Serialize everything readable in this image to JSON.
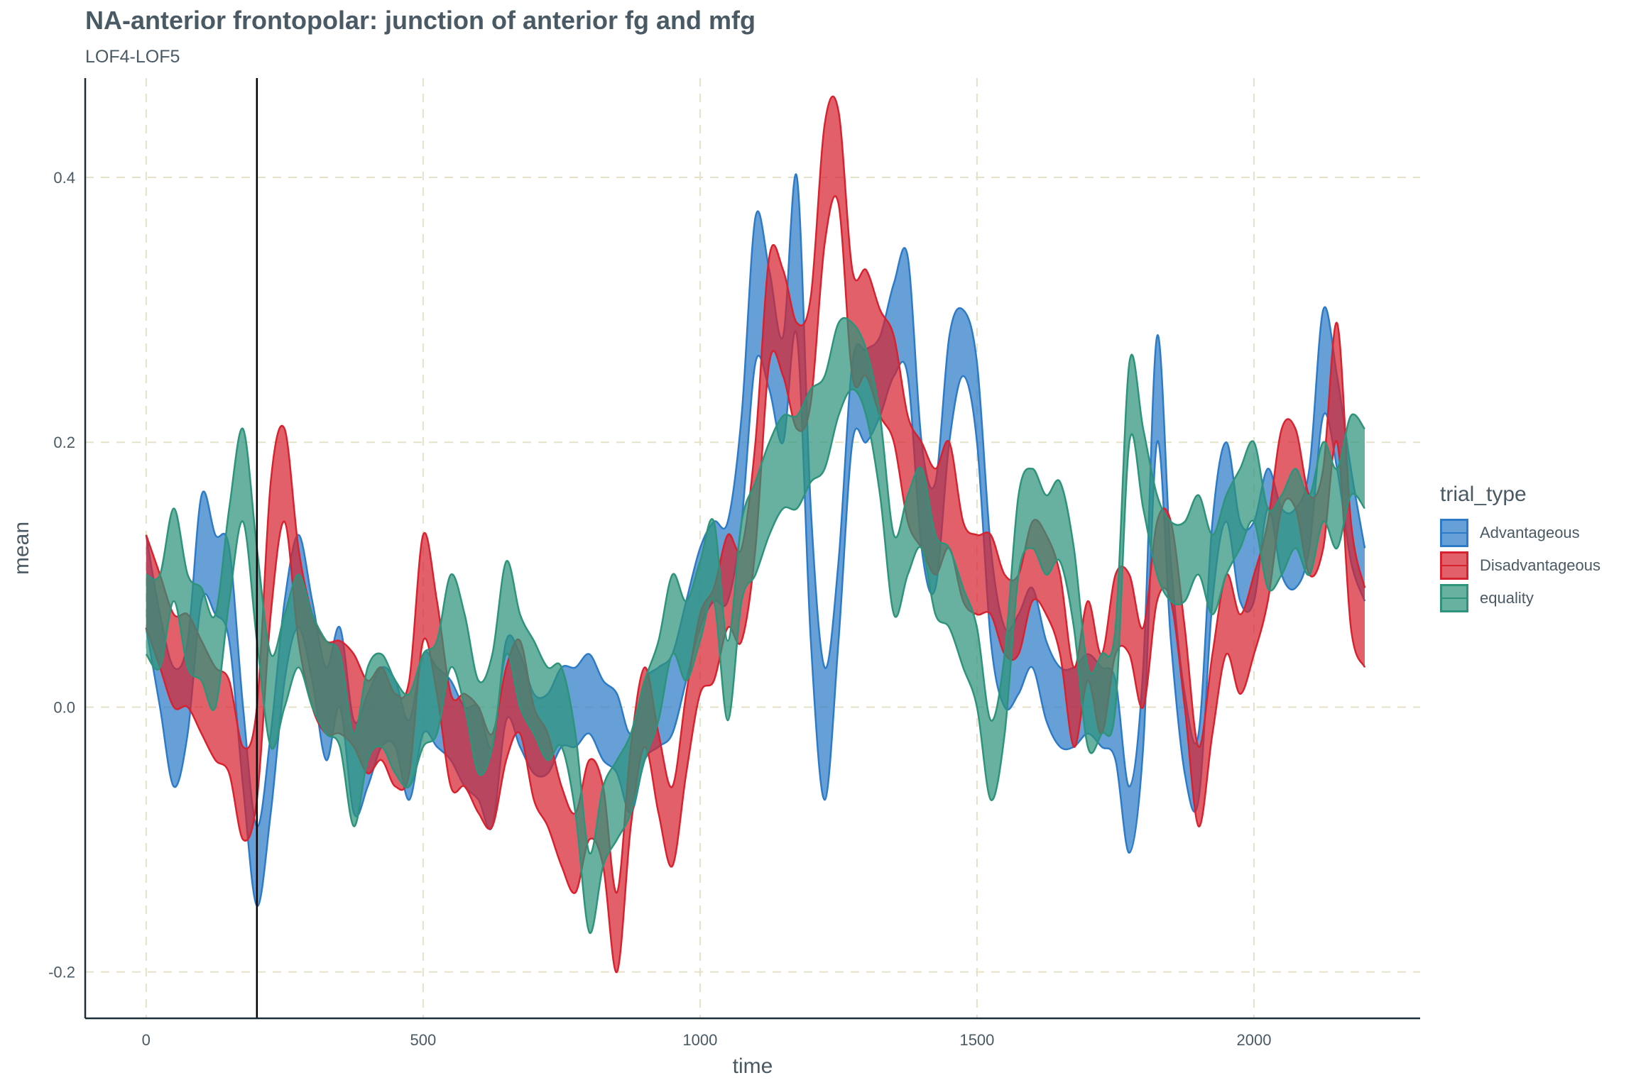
{
  "chart_data": {
    "type": "area",
    "title": "NA-anterior frontopolar: junction of anterior fg and mfg",
    "subtitle": "LOF4-LOF5",
    "xlabel": "time",
    "ylabel": "mean",
    "xlim": [
      -110,
      2300
    ],
    "ylim": [
      -0.235,
      0.475
    ],
    "xticks": [
      0,
      500,
      1000,
      1500,
      2000
    ],
    "xtick_labels": [
      "0",
      "500",
      "1000",
      "1500",
      "2000"
    ],
    "yticks": [
      -0.2,
      0.0,
      0.2,
      0.4
    ],
    "ytick_labels": [
      "-0.2",
      "0.0",
      "0.2",
      "0.4"
    ],
    "grid": true,
    "vertical_reference_line_x": 200,
    "legend_title": "trial_type",
    "legend_position": "right",
    "series": [
      {
        "name": "Advantageous",
        "color": "#2d7bc7",
        "x": [
          0,
          25,
          50,
          75,
          100,
          125,
          150,
          175,
          200,
          225,
          250,
          275,
          300,
          325,
          350,
          375,
          400,
          425,
          450,
          475,
          500,
          525,
          550,
          575,
          600,
          625,
          650,
          675,
          700,
          725,
          750,
          775,
          800,
          825,
          850,
          875,
          900,
          925,
          950,
          975,
          1000,
          1025,
          1050,
          1075,
          1100,
          1125,
          1150,
          1175,
          1200,
          1225,
          1250,
          1275,
          1300,
          1325,
          1350,
          1375,
          1400,
          1425,
          1450,
          1475,
          1500,
          1525,
          1550,
          1575,
          1600,
          1625,
          1650,
          1675,
          1700,
          1725,
          1750,
          1775,
          1800,
          1825,
          1850,
          1875,
          1900,
          1925,
          1950,
          1975,
          2000,
          2025,
          2050,
          2075,
          2100,
          2125,
          2150,
          2175,
          2200
        ],
        "lower": [
          0.06,
          0.0,
          -0.06,
          -0.02,
          0.08,
          0.07,
          0.05,
          -0.06,
          -0.15,
          -0.08,
          0.02,
          0.06,
          0.02,
          -0.04,
          0.0,
          -0.08,
          -0.06,
          -0.03,
          -0.03,
          -0.07,
          -0.02,
          -0.03,
          -0.04,
          -0.06,
          -0.07,
          -0.09,
          -0.01,
          -0.03,
          -0.05,
          -0.05,
          -0.03,
          -0.03,
          -0.02,
          -0.04,
          -0.05,
          -0.08,
          -0.04,
          -0.03,
          -0.02,
          0.02,
          0.06,
          0.08,
          0.08,
          0.14,
          0.26,
          0.24,
          0.2,
          0.28,
          0.05,
          -0.07,
          0.05,
          0.2,
          0.2,
          0.22,
          0.25,
          0.25,
          0.12,
          0.09,
          0.2,
          0.25,
          0.2,
          0.05,
          0.0,
          0.01,
          0.03,
          -0.01,
          -0.03,
          -0.03,
          -0.02,
          -0.03,
          -0.04,
          -0.11,
          -0.03,
          0.2,
          0.05,
          -0.05,
          -0.07,
          0.08,
          0.14,
          0.08,
          0.08,
          0.15,
          0.1,
          0.09,
          0.12,
          0.22,
          0.18,
          0.11,
          0.08
        ],
        "upper": [
          0.13,
          0.07,
          0.03,
          0.05,
          0.16,
          0.13,
          0.12,
          0.0,
          -0.09,
          -0.02,
          0.08,
          0.13,
          0.08,
          0.03,
          0.06,
          -0.01,
          0.01,
          0.03,
          0.02,
          -0.01,
          0.04,
          0.03,
          0.02,
          0.0,
          0.0,
          -0.03,
          0.05,
          0.04,
          0.01,
          0.01,
          0.03,
          0.03,
          0.04,
          0.02,
          0.01,
          -0.02,
          0.02,
          0.03,
          0.04,
          0.08,
          0.12,
          0.14,
          0.14,
          0.22,
          0.37,
          0.33,
          0.28,
          0.4,
          0.15,
          0.03,
          0.11,
          0.26,
          0.27,
          0.28,
          0.32,
          0.34,
          0.2,
          0.17,
          0.28,
          0.3,
          0.26,
          0.12,
          0.06,
          0.07,
          0.09,
          0.05,
          0.03,
          0.03,
          0.04,
          0.03,
          0.02,
          -0.06,
          0.03,
          0.28,
          0.11,
          0.01,
          -0.02,
          0.14,
          0.2,
          0.14,
          0.14,
          0.18,
          0.15,
          0.15,
          0.18,
          0.3,
          0.25,
          0.18,
          0.12
        ]
      },
      {
        "name": "Disadvantageous",
        "color": "#d7232f",
        "x": [
          0,
          25,
          50,
          75,
          100,
          125,
          150,
          175,
          200,
          225,
          250,
          275,
          300,
          325,
          350,
          375,
          400,
          425,
          450,
          475,
          500,
          525,
          550,
          575,
          600,
          625,
          650,
          675,
          700,
          725,
          750,
          775,
          800,
          825,
          850,
          875,
          900,
          925,
          950,
          975,
          1000,
          1025,
          1050,
          1075,
          1100,
          1125,
          1150,
          1175,
          1200,
          1225,
          1250,
          1275,
          1300,
          1325,
          1350,
          1375,
          1400,
          1425,
          1450,
          1475,
          1500,
          1525,
          1550,
          1575,
          1600,
          1625,
          1650,
          1675,
          1700,
          1725,
          1750,
          1775,
          1800,
          1825,
          1850,
          1875,
          1900,
          1925,
          1950,
          1975,
          2000,
          2025,
          2050,
          2075,
          2100,
          2125,
          2150,
          2175,
          2200
        ],
        "lower": [
          0.06,
          0.03,
          0.0,
          0.0,
          -0.02,
          -0.04,
          -0.05,
          -0.1,
          -0.07,
          0.07,
          0.14,
          0.05,
          0.0,
          -0.02,
          -0.02,
          -0.03,
          -0.05,
          -0.04,
          -0.06,
          -0.05,
          0.05,
          0.01,
          -0.06,
          -0.06,
          -0.08,
          -0.09,
          -0.04,
          -0.02,
          -0.07,
          -0.09,
          -0.12,
          -0.14,
          -0.1,
          -0.12,
          -0.2,
          -0.09,
          -0.03,
          -0.08,
          -0.12,
          -0.05,
          0.01,
          0.02,
          0.06,
          0.05,
          0.12,
          0.26,
          0.25,
          0.21,
          0.23,
          0.35,
          0.38,
          0.25,
          0.25,
          0.22,
          0.2,
          0.14,
          0.12,
          0.1,
          0.12,
          0.08,
          0.07,
          0.07,
          0.04,
          0.04,
          0.08,
          0.07,
          0.04,
          -0.03,
          0.02,
          -0.02,
          0.04,
          0.04,
          0.0,
          0.08,
          0.08,
          0.0,
          -0.09,
          -0.02,
          0.04,
          0.01,
          0.04,
          0.08,
          0.15,
          0.15,
          0.1,
          0.12,
          0.2,
          0.06,
          0.03
        ],
        "upper": [
          0.13,
          0.1,
          0.07,
          0.07,
          0.05,
          0.03,
          0.02,
          -0.03,
          0.0,
          0.17,
          0.21,
          0.12,
          0.07,
          0.05,
          0.05,
          0.04,
          0.02,
          0.03,
          0.01,
          0.02,
          0.13,
          0.08,
          0.01,
          0.01,
          0.0,
          -0.02,
          0.03,
          0.05,
          0.0,
          -0.02,
          -0.06,
          -0.08,
          -0.04,
          -0.06,
          -0.14,
          -0.03,
          0.03,
          -0.02,
          -0.06,
          0.01,
          0.07,
          0.09,
          0.13,
          0.12,
          0.2,
          0.34,
          0.33,
          0.29,
          0.31,
          0.44,
          0.45,
          0.33,
          0.33,
          0.3,
          0.28,
          0.22,
          0.2,
          0.18,
          0.2,
          0.14,
          0.13,
          0.13,
          0.1,
          0.1,
          0.14,
          0.13,
          0.1,
          0.03,
          0.08,
          0.04,
          0.1,
          0.1,
          0.06,
          0.14,
          0.14,
          0.06,
          -0.03,
          0.04,
          0.1,
          0.07,
          0.1,
          0.14,
          0.21,
          0.21,
          0.16,
          0.18,
          0.29,
          0.14,
          0.09
        ]
      },
      {
        "name": "equality",
        "color": "#2e937b",
        "x": [
          0,
          25,
          50,
          75,
          100,
          125,
          150,
          175,
          200,
          225,
          250,
          275,
          300,
          325,
          350,
          375,
          400,
          425,
          450,
          475,
          500,
          525,
          550,
          575,
          600,
          625,
          650,
          675,
          700,
          725,
          750,
          775,
          800,
          825,
          850,
          875,
          900,
          925,
          950,
          975,
          1000,
          1025,
          1050,
          1075,
          1100,
          1125,
          1150,
          1175,
          1200,
          1225,
          1250,
          1275,
          1300,
          1325,
          1350,
          1375,
          1400,
          1425,
          1450,
          1475,
          1500,
          1525,
          1550,
          1575,
          1600,
          1625,
          1650,
          1675,
          1700,
          1725,
          1750,
          1775,
          1800,
          1825,
          1850,
          1875,
          1900,
          1925,
          1950,
          1975,
          2000,
          2025,
          2050,
          2075,
          2100,
          2125,
          2150,
          2175,
          2200
        ],
        "lower": [
          0.04,
          0.03,
          0.08,
          0.03,
          0.02,
          0.0,
          0.08,
          0.14,
          0.05,
          -0.03,
          0.0,
          0.03,
          0.0,
          -0.02,
          -0.03,
          -0.09,
          -0.04,
          -0.03,
          -0.05,
          -0.06,
          -0.03,
          -0.02,
          0.03,
          0.0,
          -0.05,
          -0.03,
          0.04,
          0.0,
          -0.02,
          -0.04,
          -0.03,
          -0.08,
          -0.17,
          -0.12,
          -0.1,
          -0.08,
          -0.04,
          -0.01,
          0.04,
          0.02,
          0.05,
          0.08,
          -0.01,
          0.08,
          0.1,
          0.13,
          0.15,
          0.15,
          0.17,
          0.18,
          0.22,
          0.24,
          0.22,
          0.16,
          0.07,
          0.1,
          0.12,
          0.07,
          0.06,
          0.03,
          0.0,
          -0.07,
          -0.02,
          0.1,
          0.12,
          0.1,
          0.11,
          0.06,
          -0.03,
          -0.02,
          0.0,
          0.2,
          0.15,
          0.1,
          0.08,
          0.08,
          0.1,
          0.07,
          0.1,
          0.12,
          0.14,
          0.09,
          0.1,
          0.12,
          0.1,
          0.14,
          0.12,
          0.16,
          0.15
        ],
        "upper": [
          0.1,
          0.1,
          0.15,
          0.1,
          0.09,
          0.07,
          0.15,
          0.21,
          0.12,
          0.04,
          0.07,
          0.1,
          0.07,
          0.05,
          0.04,
          -0.02,
          0.03,
          0.04,
          0.02,
          0.01,
          0.04,
          0.05,
          0.1,
          0.07,
          0.02,
          0.04,
          0.11,
          0.07,
          0.05,
          0.03,
          0.03,
          -0.02,
          -0.11,
          -0.06,
          -0.04,
          -0.02,
          0.02,
          0.05,
          0.1,
          0.08,
          0.11,
          0.14,
          0.05,
          0.14,
          0.17,
          0.2,
          0.22,
          0.22,
          0.24,
          0.25,
          0.29,
          0.29,
          0.27,
          0.22,
          0.13,
          0.16,
          0.18,
          0.13,
          0.12,
          0.09,
          0.06,
          -0.01,
          0.04,
          0.16,
          0.18,
          0.16,
          0.17,
          0.12,
          0.03,
          0.04,
          0.06,
          0.26,
          0.21,
          0.16,
          0.14,
          0.14,
          0.16,
          0.13,
          0.16,
          0.18,
          0.2,
          0.15,
          0.16,
          0.18,
          0.16,
          0.2,
          0.18,
          0.22,
          0.21
        ]
      }
    ]
  }
}
